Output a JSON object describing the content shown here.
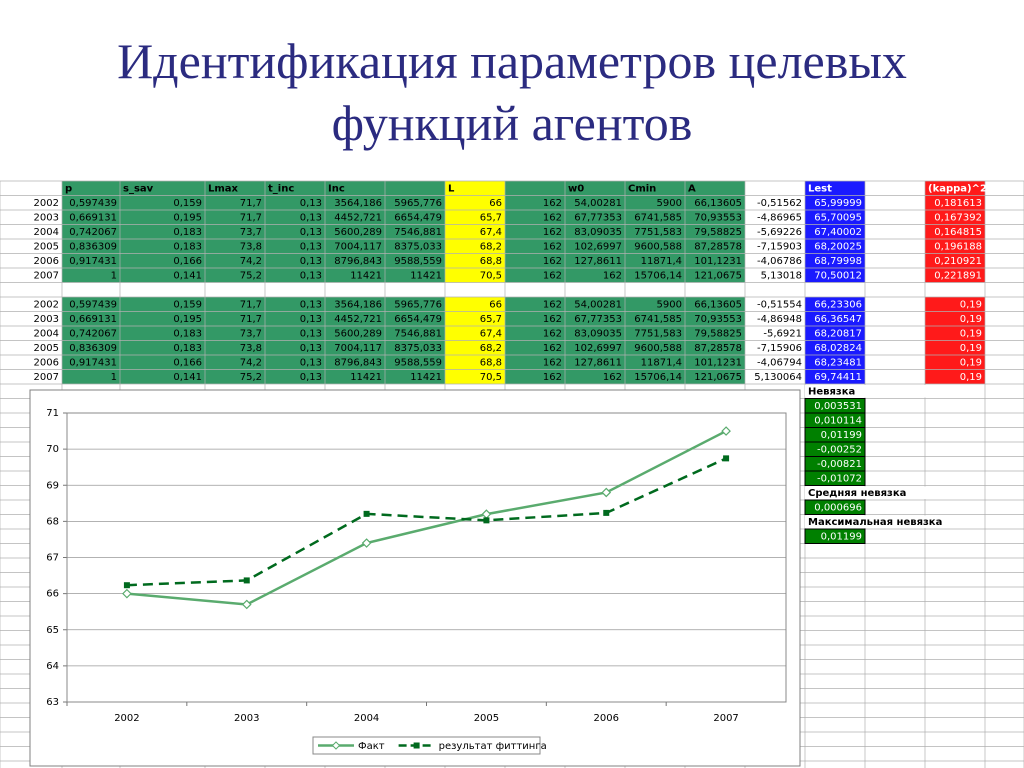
{
  "title": "Идентификация параметров целевых функций агентов",
  "table": {
    "header": [
      "p",
      "s_sav",
      "Lmax",
      "t_inc",
      "Inc",
      "L",
      "w0",
      "Cmin",
      "A",
      "Lest",
      "(kappa)^2"
    ],
    "block1": [
      {
        "year": "2002",
        "cells": [
          "0,597439",
          "0,159",
          "71,7",
          "0,13",
          "3564,186",
          "5965,776",
          "66",
          "162",
          "54,00281",
          "5900",
          "66,13605",
          "-0,51562",
          "65,99999",
          "0,181613"
        ]
      },
      {
        "year": "2003",
        "cells": [
          "0,669131",
          "0,195",
          "71,7",
          "0,13",
          "4452,721",
          "6654,479",
          "65,7",
          "162",
          "67,77353",
          "6741,585",
          "70,93553",
          "-4,86965",
          "65,70095",
          "0,167392"
        ]
      },
      {
        "year": "2004",
        "cells": [
          "0,742067",
          "0,183",
          "73,7",
          "0,13",
          "5600,289",
          "7546,881",
          "67,4",
          "162",
          "83,09035",
          "7751,583",
          "79,58825",
          "-5,69226",
          "67,40002",
          "0,164815"
        ]
      },
      {
        "year": "2005",
        "cells": [
          "0,836309",
          "0,183",
          "73,8",
          "0,13",
          "7004,117",
          "8375,033",
          "68,2",
          "162",
          "102,6997",
          "9600,588",
          "87,28578",
          "-7,15903",
          "68,20025",
          "0,196188"
        ]
      },
      {
        "year": "2006",
        "cells": [
          "0,917431",
          "0,166",
          "74,2",
          "0,13",
          "8796,843",
          "9588,559",
          "68,8",
          "162",
          "127,8611",
          "11871,4",
          "101,1231",
          "-4,06786",
          "68,79998",
          "0,210921"
        ]
      },
      {
        "year": "2007",
        "cells": [
          "1",
          "0,141",
          "75,2",
          "0,13",
          "11421",
          "11421",
          "70,5",
          "162",
          "162",
          "15706,14",
          "121,0675",
          "5,13018",
          "70,50012",
          "0,221891"
        ]
      }
    ],
    "block2": [
      {
        "year": "2002",
        "cells": [
          "0,597439",
          "0,159",
          "71,7",
          "0,13",
          "3564,186",
          "5965,776",
          "66",
          "162",
          "54,00281",
          "5900",
          "66,13605",
          "-0,51554",
          "66,23306",
          "0,19"
        ]
      },
      {
        "year": "2003",
        "cells": [
          "0,669131",
          "0,195",
          "71,7",
          "0,13",
          "4452,721",
          "6654,479",
          "65,7",
          "162",
          "67,77353",
          "6741,585",
          "70,93553",
          "-4,86948",
          "66,36547",
          "0,19"
        ]
      },
      {
        "year": "2004",
        "cells": [
          "0,742067",
          "0,183",
          "73,7",
          "0,13",
          "5600,289",
          "7546,881",
          "67,4",
          "162",
          "83,09035",
          "7751,583",
          "79,58825",
          "-5,6921",
          "68,20817",
          "0,19"
        ]
      },
      {
        "year": "2005",
        "cells": [
          "0,836309",
          "0,183",
          "73,8",
          "0,13",
          "7004,117",
          "8375,033",
          "68,2",
          "162",
          "102,6997",
          "9600,588",
          "87,28578",
          "-7,15906",
          "68,02824",
          "0,19"
        ]
      },
      {
        "year": "2006",
        "cells": [
          "0,917431",
          "0,166",
          "74,2",
          "0,13",
          "8796,843",
          "9588,559",
          "68,8",
          "162",
          "127,8611",
          "11871,4",
          "101,1231",
          "-4,06794",
          "68,23481",
          "0,19"
        ]
      },
      {
        "year": "2007",
        "cells": [
          "1",
          "0,141",
          "75,2",
          "0,13",
          "11421",
          "11421",
          "70,5",
          "162",
          "162",
          "15706,14",
          "121,0675",
          "5,130064",
          "69,74411",
          "0,19"
        ]
      }
    ]
  },
  "residual": {
    "label": "Невязка",
    "values": [
      "0,003531",
      "0,010114",
      "0,01199",
      "-0,00252",
      "-0,00821",
      "-0,01072"
    ]
  },
  "mean_residual": {
    "label": "Средняя невязка",
    "value": "0,000696"
  },
  "max_residual": {
    "label": "Максимальная невязка",
    "value": "0,01199"
  },
  "chart_data": {
    "type": "line",
    "categories": [
      "2002",
      "2003",
      "2004",
      "2005",
      "2006",
      "2007"
    ],
    "series": [
      {
        "name": "Факт",
        "color": "#5aab6e",
        "values": [
          66,
          65.7,
          67.4,
          68.2,
          68.8,
          70.5
        ]
      },
      {
        "name": "результат фиттинга",
        "color": "#006a1e",
        "values": [
          66.23306,
          66.36547,
          68.20817,
          68.02824,
          68.23481,
          69.74411
        ]
      }
    ],
    "ylim": [
      63,
      71
    ],
    "yticks": [
      63,
      64,
      65,
      66,
      67,
      68,
      69,
      70,
      71
    ],
    "grid": true,
    "legend": "bottom"
  }
}
